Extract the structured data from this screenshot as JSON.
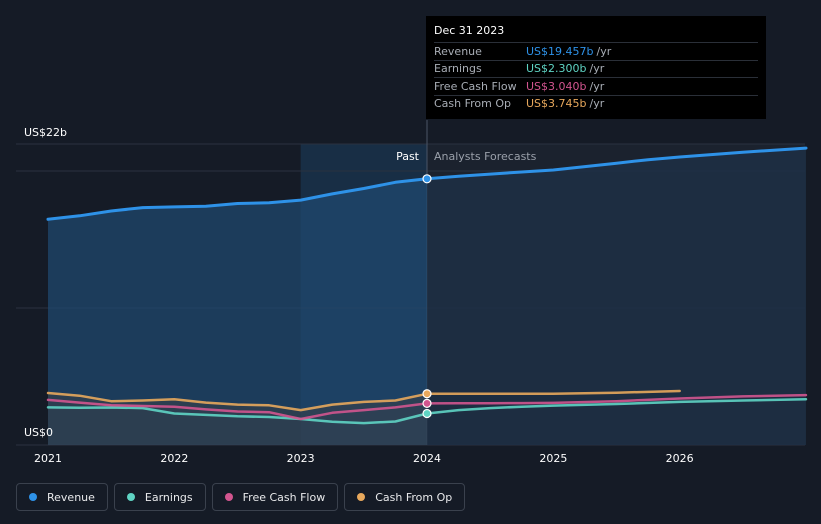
{
  "chart_data": {
    "type": "line",
    "title": "",
    "ylabel_top": "US$22b",
    "ylabel_bottom": "US$0",
    "ylim": [
      0,
      22
    ],
    "xlim": [
      2021.0,
      2027.0
    ],
    "x_ticks": [
      "2021",
      "2022",
      "2023",
      "2024",
      "2025",
      "2026"
    ],
    "past_label": "Past",
    "forecast_label": "Analysts Forecasts",
    "divider_x": 2024.0,
    "grid": "horizontal",
    "series": [
      {
        "name": "Revenue",
        "color": "#2e92e8",
        "points": [
          [
            2021.0,
            16.5
          ],
          [
            2021.25,
            16.75
          ],
          [
            2021.5,
            17.1
          ],
          [
            2021.75,
            17.35
          ],
          [
            2022.0,
            17.4
          ],
          [
            2022.25,
            17.45
          ],
          [
            2022.5,
            17.65
          ],
          [
            2022.75,
            17.7
          ],
          [
            2023.0,
            17.9
          ],
          [
            2023.25,
            18.35
          ],
          [
            2023.5,
            18.75
          ],
          [
            2023.75,
            19.2
          ],
          [
            2024.0,
            19.457
          ],
          [
            2024.25,
            19.65
          ],
          [
            2024.5,
            19.8
          ],
          [
            2024.75,
            19.95
          ],
          [
            2025.0,
            20.1
          ],
          [
            2025.25,
            20.35
          ],
          [
            2025.5,
            20.6
          ],
          [
            2025.75,
            20.85
          ],
          [
            2026.0,
            21.05
          ],
          [
            2026.5,
            21.4
          ],
          [
            2027.0,
            21.7
          ]
        ]
      },
      {
        "name": "Earnings",
        "color": "#5fd4c4",
        "points": [
          [
            2021.0,
            2.75
          ],
          [
            2021.25,
            2.72
          ],
          [
            2021.5,
            2.74
          ],
          [
            2021.75,
            2.7
          ],
          [
            2022.0,
            2.3
          ],
          [
            2022.25,
            2.2
          ],
          [
            2022.5,
            2.1
          ],
          [
            2022.75,
            2.05
          ],
          [
            2023.0,
            1.9
          ],
          [
            2023.25,
            1.7
          ],
          [
            2023.5,
            1.6
          ],
          [
            2023.75,
            1.72
          ],
          [
            2024.0,
            2.3
          ],
          [
            2024.25,
            2.55
          ],
          [
            2024.5,
            2.7
          ],
          [
            2024.75,
            2.8
          ],
          [
            2025.0,
            2.88
          ],
          [
            2025.5,
            3.0
          ],
          [
            2026.0,
            3.15
          ],
          [
            2026.5,
            3.25
          ],
          [
            2027.0,
            3.35
          ]
        ]
      },
      {
        "name": "Free Cash Flow",
        "color": "#d2558f",
        "points": [
          [
            2021.0,
            3.3
          ],
          [
            2021.25,
            3.1
          ],
          [
            2021.5,
            2.9
          ],
          [
            2021.75,
            2.85
          ],
          [
            2022.0,
            2.8
          ],
          [
            2022.25,
            2.6
          ],
          [
            2022.5,
            2.45
          ],
          [
            2022.75,
            2.4
          ],
          [
            2023.0,
            1.9
          ],
          [
            2023.25,
            2.35
          ],
          [
            2023.5,
            2.55
          ],
          [
            2023.75,
            2.75
          ],
          [
            2024.0,
            3.04
          ],
          [
            2024.25,
            3.05
          ],
          [
            2024.5,
            3.05
          ],
          [
            2024.75,
            3.06
          ],
          [
            2025.0,
            3.08
          ],
          [
            2025.5,
            3.2
          ],
          [
            2026.0,
            3.4
          ],
          [
            2026.5,
            3.55
          ],
          [
            2027.0,
            3.65
          ]
        ]
      },
      {
        "name": "Cash From Op",
        "color": "#e8a85c",
        "points": [
          [
            2021.0,
            3.8
          ],
          [
            2021.25,
            3.6
          ],
          [
            2021.5,
            3.2
          ],
          [
            2021.75,
            3.25
          ],
          [
            2022.0,
            3.35
          ],
          [
            2022.25,
            3.1
          ],
          [
            2022.5,
            2.95
          ],
          [
            2022.75,
            2.9
          ],
          [
            2023.0,
            2.55
          ],
          [
            2023.25,
            2.95
          ],
          [
            2023.5,
            3.15
          ],
          [
            2023.75,
            3.25
          ],
          [
            2024.0,
            3.745
          ],
          [
            2024.5,
            3.74
          ],
          [
            2025.0,
            3.74
          ],
          [
            2025.5,
            3.82
          ],
          [
            2026.0,
            3.95
          ]
        ]
      }
    ]
  },
  "tooltip": {
    "date": "Dec 31 2023",
    "rows": [
      {
        "label": "Revenue",
        "value": "US$19.457b",
        "unit": "/yr",
        "color": "#2e92e8"
      },
      {
        "label": "Earnings",
        "value": "US$2.300b",
        "unit": "/yr",
        "color": "#5fd4c4"
      },
      {
        "label": "Free Cash Flow",
        "value": "US$3.040b",
        "unit": "/yr",
        "color": "#d2558f"
      },
      {
        "label": "Cash From Op",
        "value": "US$3.745b",
        "unit": "/yr",
        "color": "#e8a85c"
      }
    ]
  },
  "legend": [
    {
      "label": "Revenue",
      "color": "#2e92e8"
    },
    {
      "label": "Earnings",
      "color": "#5fd4c4"
    },
    {
      "label": "Free Cash Flow",
      "color": "#d2558f"
    },
    {
      "label": "Cash From Op",
      "color": "#e8a85c"
    }
  ]
}
